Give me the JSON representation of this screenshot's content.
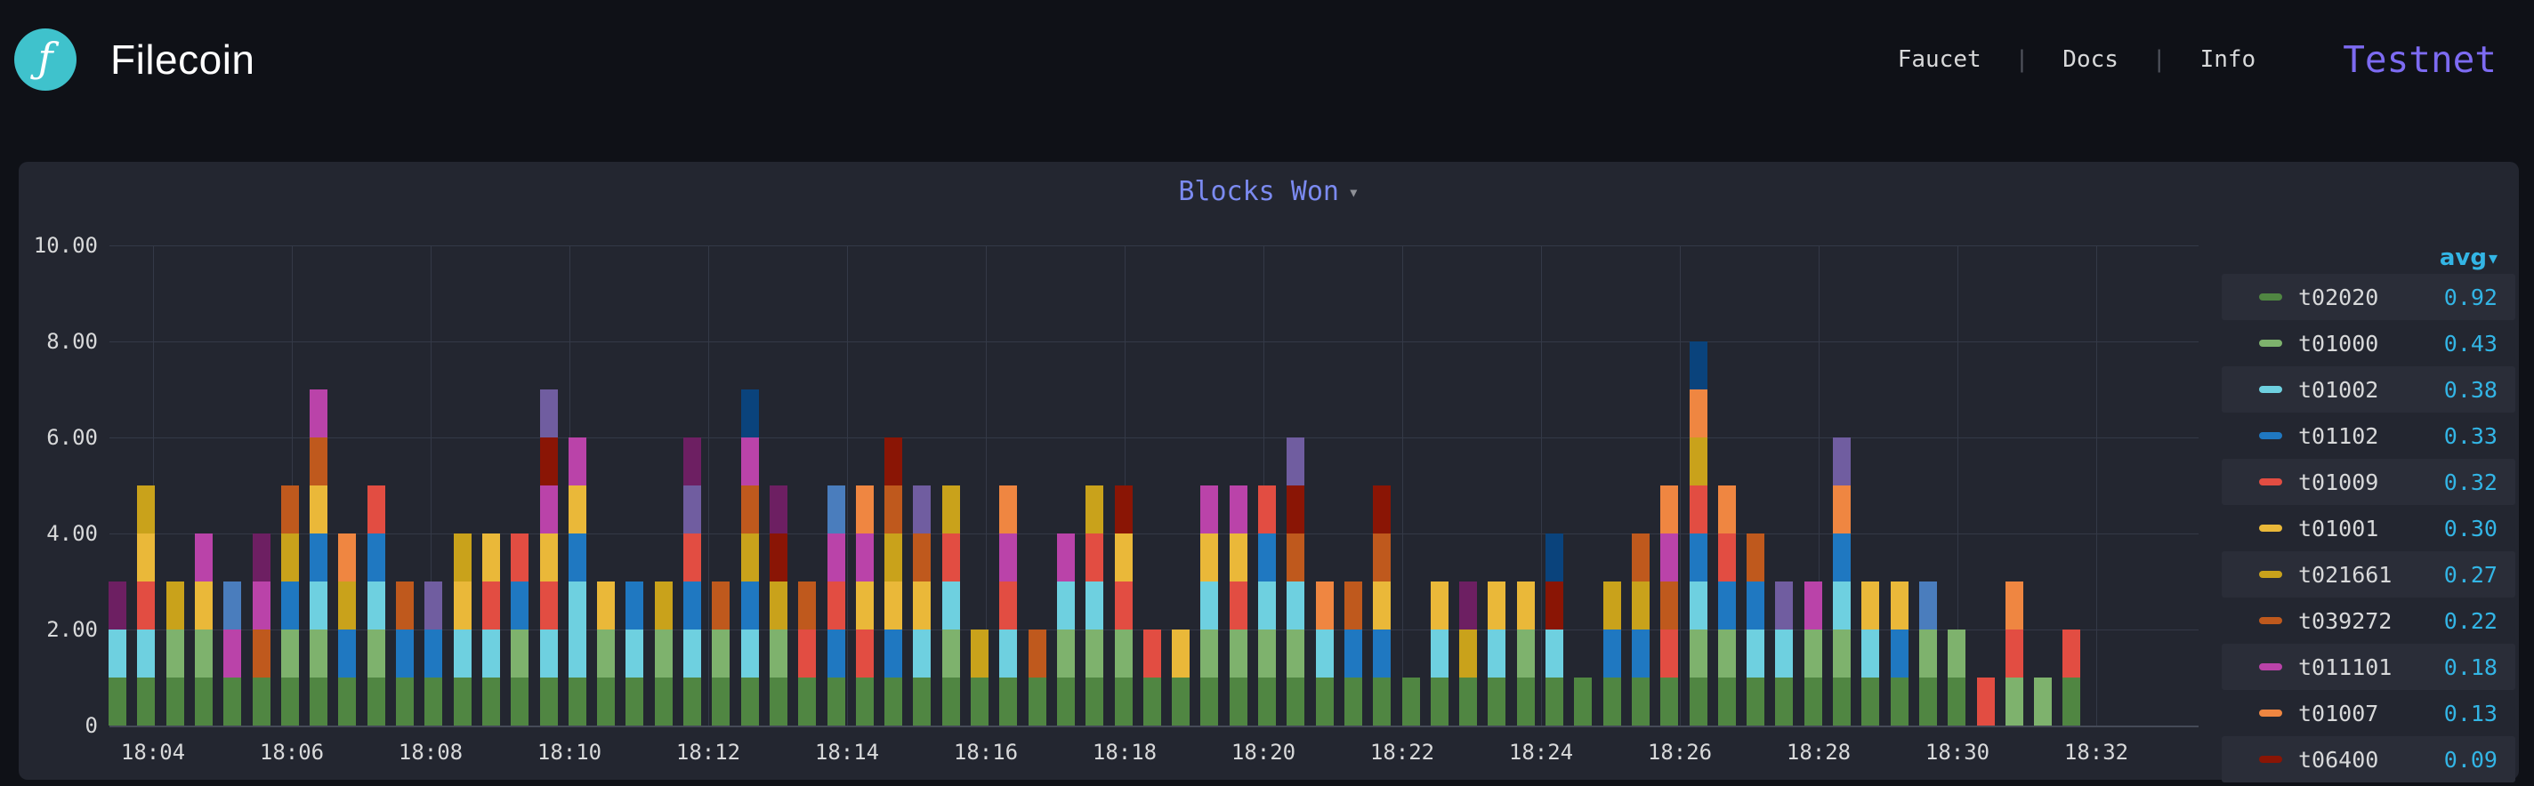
{
  "header": {
    "brand": "Filecoin",
    "logo_glyph": "ƒ",
    "nav": [
      {
        "label": "Faucet"
      },
      {
        "label": "Docs"
      },
      {
        "label": "Info"
      }
    ],
    "separator": "|",
    "network": "Testnet"
  },
  "panel": {
    "title": "Blocks Won",
    "dropdown_caret": "▾"
  },
  "colors": {
    "page_bg": "#0f1117",
    "panel_bg": "#232630",
    "logo_bg": "#3fc2cc",
    "title_accent": "#7b8af0",
    "network_accent": "#7d6bf2",
    "legend_value_accent": "#33b5e5"
  },
  "chart_data": {
    "type": "bar",
    "stacked": true,
    "title": "Blocks Won",
    "xlabel": "",
    "ylabel": "",
    "ylim": [
      0,
      10
    ],
    "grid": true,
    "legend_position": "right",
    "y_tick_values": [
      10,
      8,
      6,
      4,
      2,
      0
    ],
    "y_tick_labels": [
      "10.00",
      "8.00",
      "6.00",
      "4.00",
      "2.00",
      "0"
    ],
    "x_tick_labels": [
      "18:04",
      "18:06",
      "18:08",
      "18:10",
      "18:12",
      "18:14",
      "18:16",
      "18:18",
      "18:20",
      "18:22",
      "18:24",
      "18:26",
      "18:28",
      "18:30",
      "18:32"
    ],
    "palette": {
      "g": "#508642",
      "lg": "#7eb26d",
      "c": "#6ed0e0",
      "b": "#1f78c1",
      "r": "#e24d42",
      "y": "#eab839",
      "dg": "#c9a21b",
      "o": "#ef8641",
      "do": "#bf591d",
      "m": "#ba43a9",
      "dr": "#8a1505",
      "pu": "#6d1f62",
      "sl": "#705da0",
      "nv": "#0a437c",
      "st": "#4a7dbd"
    },
    "series_colors": {
      "t02020": "g",
      "t01000": "lg",
      "t01002": "c",
      "t01102": "b",
      "t01009": "r",
      "t01001": "y",
      "t021661": "dg",
      "t039272": "do",
      "t011101": "m",
      "t01007": "o",
      "t06400": "dr"
    },
    "legend": {
      "header": "avg",
      "sort_caret": "▾",
      "rows": [
        {
          "name": "t02020",
          "avg": "0.92"
        },
        {
          "name": "t01000",
          "avg": "0.43"
        },
        {
          "name": "t01002",
          "avg": "0.38"
        },
        {
          "name": "t01102",
          "avg": "0.33"
        },
        {
          "name": "t01009",
          "avg": "0.32"
        },
        {
          "name": "t01001",
          "avg": "0.30"
        },
        {
          "name": "t021661",
          "avg": "0.27"
        },
        {
          "name": "t039272",
          "avg": "0.22"
        },
        {
          "name": "t011101",
          "avg": "0.18"
        },
        {
          "name": "t01007",
          "avg": "0.13"
        },
        {
          "name": "t06400",
          "avg": "0.09"
        }
      ]
    },
    "bars": [
      [
        "g",
        "c",
        "pu"
      ],
      [
        "g",
        "c",
        "r",
        "y",
        "dg"
      ],
      [
        "g",
        "lg",
        "dg"
      ],
      [
        "g",
        "lg",
        "y",
        "m"
      ],
      [
        "g",
        "m",
        "st"
      ],
      [
        "g",
        "do",
        "m",
        "pu"
      ],
      [
        "g",
        "lg",
        "b",
        "dg",
        "do"
      ],
      [
        "g",
        "lg",
        "c",
        "b",
        "y",
        "do",
        "m"
      ],
      [
        "g",
        "b",
        "dg",
        "o"
      ],
      [
        "g",
        "lg",
        "c",
        "b",
        "r"
      ],
      [
        "g",
        "b",
        "do"
      ],
      [
        "g",
        "b",
        "sl"
      ],
      [
        "g",
        "c",
        "y",
        "dg"
      ],
      [
        "g",
        "c",
        "r",
        "y"
      ],
      [
        "g",
        "lg",
        "b",
        "r"
      ],
      [
        "g",
        "c",
        "r",
        "y",
        "m",
        "dr",
        "sl"
      ],
      [
        "g",
        "c",
        "c",
        "b",
        "y",
        "m"
      ],
      [
        "g",
        "lg",
        "y"
      ],
      [
        "g",
        "c",
        "b"
      ],
      [
        "g",
        "lg",
        "dg"
      ],
      [
        "g",
        "c",
        "b",
        "r",
        "sl",
        "pu"
      ],
      [
        "g",
        "lg",
        "do"
      ],
      [
        "g",
        "c",
        "b",
        "dg",
        "do",
        "m",
        "nv"
      ],
      [
        "g",
        "lg",
        "dg",
        "dr",
        "pu"
      ],
      [
        "g",
        "r",
        "do"
      ],
      [
        "g",
        "b",
        "r",
        "m",
        "st"
      ],
      [
        "g",
        "r",
        "y",
        "m",
        "o"
      ],
      [
        "g",
        "b",
        "y",
        "dg",
        "do",
        "dr"
      ],
      [
        "g",
        "c",
        "y",
        "do",
        "sl"
      ],
      [
        "g",
        "lg",
        "c",
        "r",
        "dg"
      ],
      [
        "g",
        "dg"
      ],
      [
        "g",
        "c",
        "r",
        "m",
        "o"
      ],
      [
        "g",
        "do"
      ],
      [
        "g",
        "lg",
        "c",
        "m"
      ],
      [
        "g",
        "lg",
        "c",
        "r",
        "dg"
      ],
      [
        "g",
        "lg",
        "r",
        "y",
        "dr"
      ],
      [
        "g",
        "r"
      ],
      [
        "g",
        "y"
      ],
      [
        "g",
        "lg",
        "c",
        "y",
        "m"
      ],
      [
        "g",
        "lg",
        "r",
        "y",
        "m"
      ],
      [
        "g",
        "lg",
        "c",
        "b",
        "r"
      ],
      [
        "g",
        "lg",
        "c",
        "do",
        "dr",
        "sl"
      ],
      [
        "g",
        "c",
        "o"
      ],
      [
        "g",
        "b",
        "do"
      ],
      [
        "g",
        "b",
        "y",
        "do",
        "dr"
      ],
      [
        "g"
      ],
      [
        "g",
        "c",
        "y"
      ],
      [
        "g",
        "dg",
        "pu"
      ],
      [
        "g",
        "c",
        "y"
      ],
      [
        "g",
        "lg",
        "y"
      ],
      [
        "g",
        "c",
        "dr",
        "nv"
      ],
      [
        "g"
      ],
      [
        "g",
        "b",
        "dg"
      ],
      [
        "g",
        "b",
        "dg",
        "do"
      ],
      [
        "g",
        "r",
        "do",
        "m",
        "o"
      ],
      [
        "g",
        "lg",
        "c",
        "b",
        "r",
        "dg",
        "o",
        "nv"
      ],
      [
        "g",
        "lg",
        "b",
        "r",
        "o"
      ],
      [
        "g",
        "c",
        "b",
        "do"
      ],
      [
        "g",
        "c",
        "sl"
      ],
      [
        "g",
        "lg",
        "m"
      ],
      [
        "g",
        "lg",
        "c",
        "b",
        "o",
        "sl"
      ],
      [
        "g",
        "c",
        "y"
      ],
      [
        "g",
        "b",
        "y"
      ],
      [
        "g",
        "lg",
        "st"
      ],
      [
        "g",
        "lg"
      ],
      [
        "r"
      ],
      [
        "lg",
        "r",
        "o"
      ],
      [
        "lg"
      ],
      [
        "g",
        "r"
      ]
    ]
  }
}
